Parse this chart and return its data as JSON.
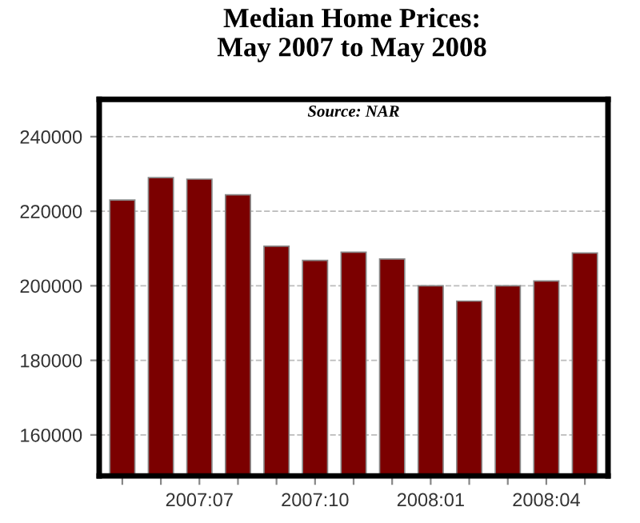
{
  "chart_data": {
    "type": "bar",
    "title": "Median Home Prices:\nMay 2007 to May 2008",
    "annotations": [
      "Source: NAR"
    ],
    "categories": [
      null,
      null,
      "2007:07",
      null,
      null,
      "2007:10",
      null,
      null,
      "2008:01",
      null,
      null,
      "2008:04",
      null
    ],
    "values": [
      223000,
      229000,
      228600,
      224400,
      210600,
      206800,
      209000,
      207200,
      200000,
      195900,
      200000,
      201300,
      208800
    ],
    "color": "#7b0000",
    "ylim": [
      149000,
      250000
    ],
    "yticks": [
      160000,
      180000,
      200000,
      220000,
      240000
    ],
    "grid": "y"
  }
}
